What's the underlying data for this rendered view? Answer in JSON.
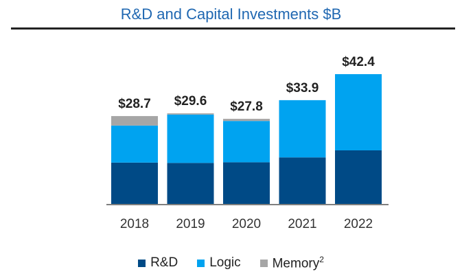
{
  "header": {
    "title": "R&D and Capital Investments $B"
  },
  "chart_data": {
    "type": "bar",
    "stacked": true,
    "categories": [
      "2018",
      "2019",
      "2020",
      "2021",
      "2022"
    ],
    "totals_labels": [
      "$28.7",
      "$29.6",
      "$27.8",
      "$33.9",
      "$42.4"
    ],
    "totals": [
      28.7,
      29.6,
      27.8,
      33.9,
      42.4
    ],
    "series": [
      {
        "name": "R&D",
        "color": "#004a86",
        "values": [
          13.5,
          13.4,
          13.6,
          15.2,
          17.5
        ]
      },
      {
        "name": "Logic",
        "color": "#00a3f0",
        "values": [
          12.1,
          15.8,
          13.5,
          18.7,
          24.9
        ]
      },
      {
        "name": "Memory",
        "color": "#a6a6a6",
        "values": [
          3.1,
          0.4,
          0.7,
          0.0,
          0.0
        ]
      }
    ],
    "legend": {
      "position": "bottom",
      "memory_superscript": "2"
    },
    "ylim": [
      0,
      42.4
    ],
    "grid": false
  }
}
